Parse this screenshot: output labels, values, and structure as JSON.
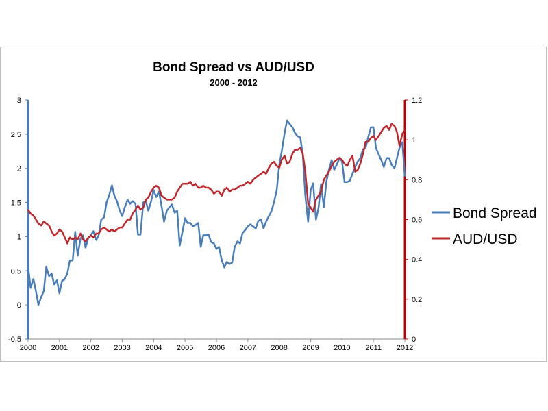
{
  "chart_data": {
    "type": "line",
    "title": "Bond Spread vs AUD/USD",
    "subtitle": "2000 - 2012",
    "xlabel": "",
    "ylabel": "",
    "xlim": [
      2000,
      2012
    ],
    "x_ticks": [
      "2000",
      "2001",
      "2002",
      "2003",
      "2004",
      "2005",
      "2006",
      "2007",
      "2008",
      "2009",
      "2010",
      "2011",
      "2012"
    ],
    "y_left": {
      "lim": [
        -0.5,
        3
      ],
      "ticks": [
        "-0.5",
        "0",
        "0.5",
        "1",
        "1.5",
        "2",
        "2.5",
        "3"
      ],
      "color": "#4a7ebb"
    },
    "y_right": {
      "lim": [
        0,
        1.2
      ],
      "ticks": [
        "0",
        "0.2",
        "0.4",
        "0.6",
        "0.8",
        "1",
        "1.2"
      ],
      "color": "#c00000"
    },
    "grid": false,
    "legend_position": "right",
    "series": [
      {
        "name": "Bond Spread",
        "axis": "left",
        "color": "#4a7ebb",
        "x": [
          2000.0,
          2000.08,
          2000.17,
          2000.25,
          2000.33,
          2000.42,
          2000.5,
          2000.58,
          2000.67,
          2000.75,
          2000.83,
          2000.92,
          2001.0,
          2001.08,
          2001.17,
          2001.25,
          2001.33,
          2001.42,
          2001.5,
          2001.58,
          2001.67,
          2001.75,
          2001.83,
          2001.92,
          2002.0,
          2002.08,
          2002.17,
          2002.25,
          2002.33,
          2002.42,
          2002.5,
          2002.58,
          2002.67,
          2002.75,
          2002.83,
          2002.92,
          2003.0,
          2003.08,
          2003.17,
          2003.25,
          2003.33,
          2003.42,
          2003.5,
          2003.58,
          2003.67,
          2003.75,
          2003.83,
          2003.92,
          2004.0,
          2004.08,
          2004.17,
          2004.25,
          2004.33,
          2004.42,
          2004.5,
          2004.58,
          2004.67,
          2004.75,
          2004.83,
          2004.92,
          2005.0,
          2005.08,
          2005.17,
          2005.25,
          2005.33,
          2005.42,
          2005.5,
          2005.58,
          2005.67,
          2005.75,
          2005.83,
          2005.92,
          2006.0,
          2006.08,
          2006.17,
          2006.25,
          2006.33,
          2006.42,
          2006.5,
          2006.58,
          2006.67,
          2006.75,
          2006.83,
          2006.92,
          2007.0,
          2007.08,
          2007.17,
          2007.25,
          2007.33,
          2007.42,
          2007.5,
          2007.58,
          2007.67,
          2007.75,
          2007.83,
          2007.92,
          2008.0,
          2008.08,
          2008.17,
          2008.25,
          2008.33,
          2008.42,
          2008.5,
          2008.58,
          2008.67,
          2008.75,
          2008.83,
          2008.92,
          2009.0,
          2009.08,
          2009.17,
          2009.25,
          2009.33,
          2009.42,
          2009.5,
          2009.58,
          2009.67,
          2009.75,
          2009.83,
          2009.92,
          2010.0,
          2010.08,
          2010.17,
          2010.25,
          2010.33,
          2010.42,
          2010.5,
          2010.58,
          2010.67,
          2010.75,
          2010.83,
          2010.92,
          2011.0,
          2011.08,
          2011.17,
          2011.25,
          2011.33,
          2011.42,
          2011.5,
          2011.58,
          2011.67,
          2011.75,
          2011.83,
          2011.92,
          2012.0
        ],
        "values": [
          0.57,
          0.25,
          0.38,
          0.2,
          0.0,
          0.12,
          0.2,
          0.56,
          0.42,
          0.46,
          0.3,
          0.36,
          0.17,
          0.35,
          0.38,
          0.46,
          0.65,
          0.65,
          1.07,
          0.72,
          0.97,
          1.02,
          0.84,
          0.98,
          1.02,
          1.08,
          0.95,
          1.02,
          1.25,
          1.28,
          1.5,
          1.6,
          1.75,
          1.6,
          1.52,
          1.38,
          1.3,
          1.43,
          1.54,
          1.48,
          1.52,
          1.48,
          1.03,
          1.03,
          1.5,
          1.52,
          1.38,
          1.52,
          1.68,
          1.58,
          1.66,
          1.45,
          1.22,
          1.38,
          1.43,
          1.47,
          1.35,
          1.38,
          0.87,
          1.08,
          1.27,
          1.2,
          1.2,
          1.15,
          1.17,
          1.2,
          0.85,
          1.02,
          1.02,
          1.03,
          0.92,
          0.9,
          0.82,
          0.85,
          0.65,
          0.55,
          0.63,
          0.6,
          0.62,
          0.85,
          0.93,
          0.9,
          1.05,
          1.1,
          1.15,
          1.18,
          1.15,
          1.12,
          1.23,
          1.25,
          1.12,
          1.22,
          1.3,
          1.37,
          1.5,
          1.68,
          2.05,
          2.25,
          2.52,
          2.7,
          2.65,
          2.6,
          2.52,
          2.47,
          2.45,
          2.2,
          1.6,
          1.22,
          1.68,
          1.78,
          1.25,
          1.42,
          1.77,
          1.43,
          1.8,
          1.98,
          2.12,
          1.98,
          2.05,
          2.15,
          2.1,
          1.8,
          1.8,
          1.82,
          1.92,
          2.02,
          2.1,
          2.15,
          2.28,
          2.3,
          2.45,
          2.6,
          2.6,
          2.3,
          2.2,
          2.12,
          2.02,
          2.15,
          2.15,
          2.05,
          2.0,
          2.15,
          2.3,
          2.38,
          1.88
        ]
      },
      {
        "name": "AUD/USD",
        "axis": "right",
        "color": "#c0272d",
        "x": [
          2000.0,
          2000.08,
          2000.17,
          2000.25,
          2000.33,
          2000.42,
          2000.5,
          2000.58,
          2000.67,
          2000.75,
          2000.83,
          2000.92,
          2001.0,
          2001.08,
          2001.17,
          2001.25,
          2001.33,
          2001.42,
          2001.5,
          2001.58,
          2001.67,
          2001.75,
          2001.83,
          2001.92,
          2002.0,
          2002.08,
          2002.17,
          2002.25,
          2002.33,
          2002.42,
          2002.5,
          2002.58,
          2002.67,
          2002.75,
          2002.83,
          2002.92,
          2003.0,
          2003.08,
          2003.17,
          2003.25,
          2003.33,
          2003.42,
          2003.5,
          2003.58,
          2003.67,
          2003.75,
          2003.83,
          2003.92,
          2004.0,
          2004.08,
          2004.17,
          2004.25,
          2004.33,
          2004.42,
          2004.5,
          2004.58,
          2004.67,
          2004.75,
          2004.83,
          2004.92,
          2005.0,
          2005.08,
          2005.17,
          2005.25,
          2005.33,
          2005.42,
          2005.5,
          2005.58,
          2005.67,
          2005.75,
          2005.83,
          2005.92,
          2006.0,
          2006.08,
          2006.17,
          2006.25,
          2006.33,
          2006.42,
          2006.5,
          2006.58,
          2006.67,
          2006.75,
          2006.83,
          2006.92,
          2007.0,
          2007.08,
          2007.17,
          2007.25,
          2007.33,
          2007.42,
          2007.5,
          2007.58,
          2007.67,
          2007.75,
          2007.83,
          2007.92,
          2008.0,
          2008.08,
          2008.17,
          2008.25,
          2008.33,
          2008.42,
          2008.5,
          2008.58,
          2008.67,
          2008.75,
          2008.83,
          2008.92,
          2009.0,
          2009.08,
          2009.17,
          2009.25,
          2009.33,
          2009.42,
          2009.5,
          2009.58,
          2009.67,
          2009.75,
          2009.83,
          2009.92,
          2010.0,
          2010.08,
          2010.17,
          2010.25,
          2010.33,
          2010.42,
          2010.5,
          2010.58,
          2010.67,
          2010.75,
          2010.83,
          2010.92,
          2011.0,
          2011.08,
          2011.17,
          2011.25,
          2011.33,
          2011.42,
          2011.5,
          2011.58,
          2011.67,
          2011.75,
          2011.83,
          2011.92,
          2012.0
        ],
        "values": [
          0.65,
          0.63,
          0.62,
          0.6,
          0.58,
          0.57,
          0.59,
          0.58,
          0.57,
          0.54,
          0.52,
          0.53,
          0.55,
          0.54,
          0.51,
          0.48,
          0.51,
          0.5,
          0.51,
          0.5,
          0.53,
          0.5,
          0.49,
          0.51,
          0.52,
          0.51,
          0.53,
          0.53,
          0.55,
          0.56,
          0.55,
          0.54,
          0.55,
          0.54,
          0.55,
          0.56,
          0.56,
          0.58,
          0.6,
          0.6,
          0.63,
          0.65,
          0.67,
          0.65,
          0.66,
          0.7,
          0.71,
          0.74,
          0.76,
          0.77,
          0.76,
          0.72,
          0.71,
          0.7,
          0.7,
          0.7,
          0.71,
          0.74,
          0.76,
          0.78,
          0.78,
          0.78,
          0.79,
          0.77,
          0.78,
          0.76,
          0.76,
          0.77,
          0.76,
          0.76,
          0.75,
          0.73,
          0.74,
          0.74,
          0.72,
          0.75,
          0.76,
          0.74,
          0.75,
          0.75,
          0.76,
          0.77,
          0.77,
          0.78,
          0.79,
          0.78,
          0.8,
          0.81,
          0.82,
          0.83,
          0.84,
          0.83,
          0.86,
          0.88,
          0.89,
          0.87,
          0.86,
          0.9,
          0.92,
          0.88,
          0.89,
          0.93,
          0.95,
          0.95,
          0.96,
          0.93,
          0.84,
          0.68,
          0.66,
          0.64,
          0.7,
          0.72,
          0.74,
          0.8,
          0.82,
          0.84,
          0.87,
          0.89,
          0.9,
          0.91,
          0.9,
          0.88,
          0.87,
          0.9,
          0.92,
          0.84,
          0.85,
          0.88,
          0.93,
          0.99,
          0.99,
          1.01,
          1.02,
          1.0,
          1.02,
          1.04,
          1.06,
          1.07,
          1.05,
          1.08,
          1.07,
          1.04,
          0.97,
          1.03,
          1.05
        ]
      }
    ]
  }
}
